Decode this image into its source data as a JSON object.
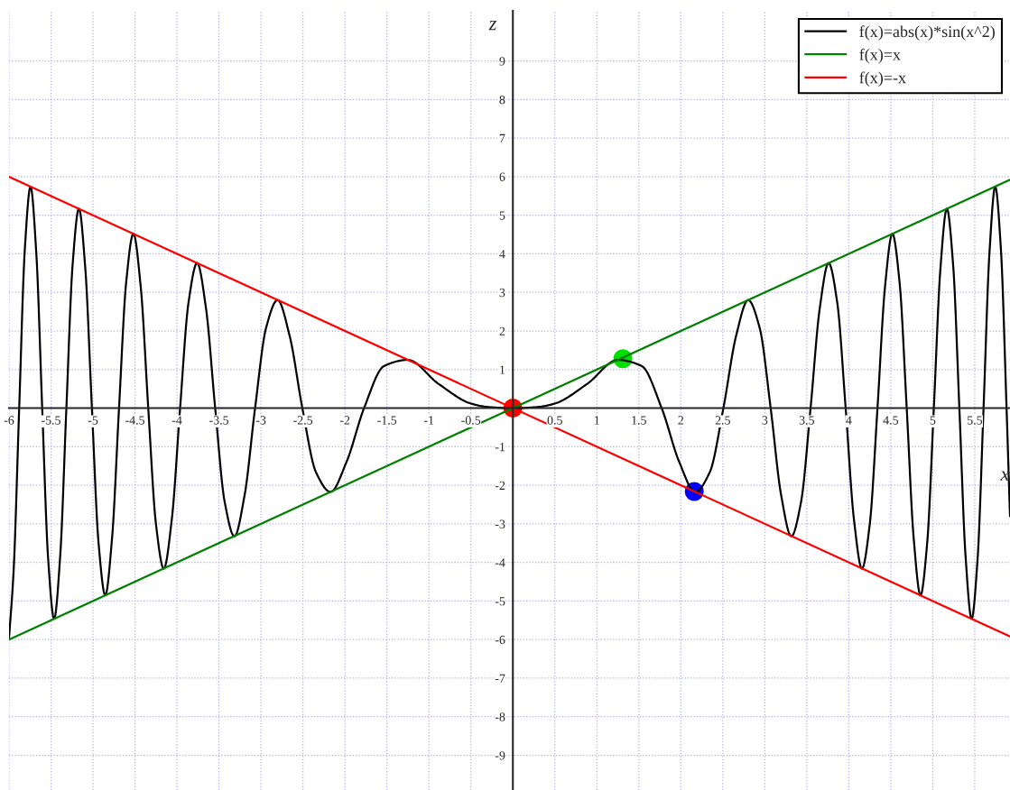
{
  "chart_data": {
    "type": "line",
    "xlabel": "x",
    "ylabel": "z",
    "xlim": [
      -6,
      5.92
    ],
    "ylim": [
      -9.9,
      10.3
    ],
    "xticks": [
      -6,
      -5.5,
      -5,
      -4.5,
      -4,
      -3.5,
      -3,
      -2.5,
      -2,
      -1.5,
      -1,
      -0.5,
      0.5,
      1,
      1.5,
      2,
      2.5,
      3,
      3.5,
      4,
      4.5,
      5,
      5.5
    ],
    "yticks": [
      -9,
      -8,
      -7,
      -6,
      -5,
      -4,
      -3,
      -2,
      -1,
      1,
      2,
      3,
      4,
      5,
      6,
      7,
      8,
      9
    ],
    "grid": true,
    "legend": "top right",
    "series": [
      {
        "name": "f(x)=abs(x)*sin(x^2)",
        "color": "#000000",
        "x": [
          -6,
          -5.945,
          -5.879,
          -5.812,
          -5.744,
          -5.675,
          -5.605,
          -5.534,
          -5.463,
          -5.39,
          -5.317,
          -5.243,
          -5.168,
          -5.091,
          -5.013,
          -4.934,
          -4.854,
          -4.773,
          -4.69,
          -4.605,
          -4.519,
          -4.431,
          -4.342,
          -4.25,
          -4.157,
          -4.061,
          -3.963,
          -3.863,
          -3.76,
          -3.654,
          -3.545,
          -3.432,
          -3.316,
          -3.195,
          -3.07,
          -2.939,
          -2.802,
          -2.659,
          -2.507,
          -2.345,
          -2.171,
          -1.982,
          -1.772,
          -1.535,
          -1.253,
          -0.886,
          -0.5,
          -0.3,
          0,
          0.3,
          0.5,
          0.886,
          1.253,
          1.535,
          1.772,
          1.982,
          2.171,
          2.345,
          2.507,
          2.659,
          2.802,
          2.939,
          3.07,
          3.195,
          3.316,
          3.432,
          3.545,
          3.654,
          3.76,
          3.863,
          3.963,
          4.061,
          4.157,
          4.25,
          4.342,
          4.431,
          4.519,
          4.605,
          4.69,
          4.773,
          4.854,
          4.934,
          5.013,
          5.091,
          5.168,
          5.243,
          5.317,
          5.39,
          5.463,
          5.534,
          5.605,
          5.675,
          5.744,
          5.812,
          5.879,
          5.92
        ],
        "values": [
          -5.96,
          -4.2,
          0,
          4.11,
          5.74,
          4.01,
          0,
          -3.91,
          -5.46,
          -3.81,
          0,
          3.71,
          5.17,
          3.6,
          0,
          -3.49,
          -4.85,
          -3.37,
          0,
          3.26,
          4.52,
          3.13,
          0,
          -3.01,
          -4.16,
          -2.87,
          0,
          2.73,
          3.76,
          2.58,
          0,
          -2.43,
          -3.32,
          -2.26,
          0,
          2.08,
          2.8,
          1.88,
          0,
          -1.66,
          -2.17,
          -1.4,
          0,
          1.09,
          1.25,
          0.63,
          0.12,
          0.03,
          0,
          0.03,
          0.12,
          0.63,
          1.25,
          1.09,
          0,
          -1.4,
          -2.17,
          -1.66,
          0,
          1.88,
          2.8,
          2.08,
          0,
          -2.26,
          -3.32,
          -2.43,
          0,
          2.58,
          3.76,
          2.73,
          0,
          -2.87,
          -4.16,
          -3.01,
          0,
          3.13,
          4.52,
          3.26,
          0,
          -3.37,
          -4.85,
          -3.49,
          0,
          3.6,
          5.17,
          3.71,
          0,
          -3.81,
          -5.46,
          -3.91,
          0,
          4.01,
          5.74,
          4.11,
          0,
          -2.8
        ]
      },
      {
        "name": "f(x)=x",
        "color": "#008000",
        "x": [
          -6,
          5.92
        ],
        "values": [
          -6,
          5.92
        ]
      },
      {
        "name": "f(x)=-x",
        "color": "#ff0000",
        "x": [
          -6,
          5.92
        ],
        "values": [
          6,
          -5.92
        ]
      },
      {
        "type": "scatter",
        "marker": "circle",
        "x": [
          0,
          1.31,
          2.16
        ],
        "values": [
          0,
          1.28,
          -2.16
        ],
        "colors": [
          "#ff0000",
          "#00e000",
          "#0000ff"
        ]
      }
    ]
  }
}
